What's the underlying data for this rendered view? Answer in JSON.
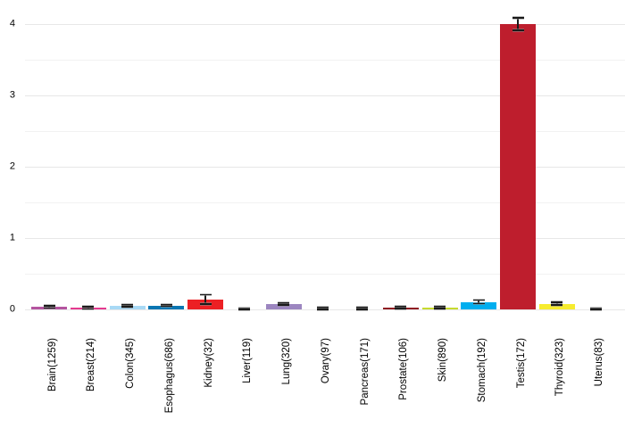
{
  "chart_data": {
    "type": "bar",
    "title": "",
    "xlabel": "",
    "ylabel": "",
    "categories": [
      "Brain(1259)",
      "Breast(214)",
      "Colon(345)",
      "Esophagus(686)",
      "Kidney(32)",
      "Liver(119)",
      "Lung(320)",
      "Ovary(97)",
      "Pancreas(171)",
      "Prostate(106)",
      "Skin(890)",
      "Stomach(192)",
      "Testis(172)",
      "Thyroid(323)",
      "Uterus(83)"
    ],
    "values": [
      0.035,
      0.02,
      0.05,
      0.055,
      0.14,
      0.01,
      0.075,
      0.01,
      0.01,
      0.028,
      0.022,
      0.105,
      4.0,
      0.08,
      0.01
    ],
    "error_bars": [
      0.015,
      0.013,
      0.015,
      0.012,
      0.065,
      0.01,
      0.015,
      0.012,
      0.012,
      0.013,
      0.012,
      0.025,
      0.085,
      0.02,
      0.01
    ],
    "bar_colors": [
      "#b455a0",
      "#e5398f",
      "#a8d9f5",
      "#0a76b2",
      "#ec2024",
      "#2f2f2f",
      "#9c86c0",
      "#2f2f2f",
      "#2f2f2f",
      "#8f1d22",
      "#c7da2f",
      "#00aeef",
      "#be1e2d",
      "#f7ec2f",
      "#2f2f2f"
    ],
    "y_tick_labels": [
      "0",
      "1",
      "2",
      "3",
      "4"
    ],
    "yticks": [
      0,
      1,
      2,
      3,
      4
    ],
    "ylim": [
      0,
      4.2
    ],
    "minor_grid_step": 0.5,
    "grid": true,
    "legend": false,
    "style": {
      "background_color": "#ffffff",
      "major_gridline_color": "#e7e7e7",
      "minor_gridline_color": "#f2f2f2",
      "error_bar_color": "#1a1a1a",
      "tick_label_color": "#000000"
    }
  }
}
